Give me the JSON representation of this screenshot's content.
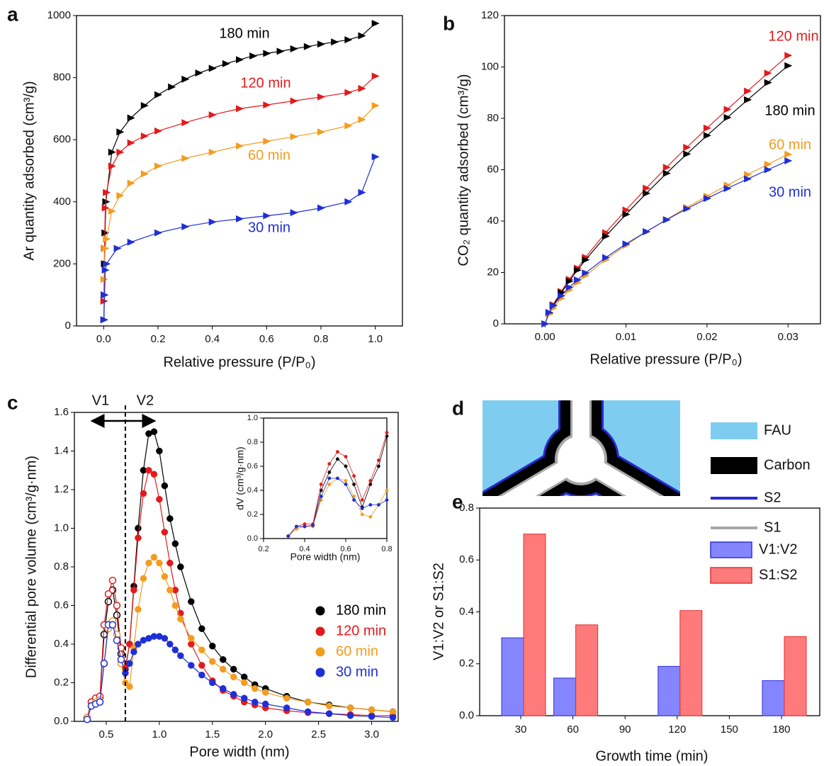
{
  "chart_data": [
    {
      "type": "line",
      "label": "a",
      "marker": "triangle",
      "xlabel": "Relative pressure (P/P₀)",
      "ylabel": "Ar quantity adsorbed (cm³/g)",
      "xlim": [
        -0.1,
        1.1
      ],
      "ylim": [
        0,
        1000
      ],
      "xticks": [
        {
          "value": 0,
          "label": "0.0"
        },
        0.2,
        0.4,
        0.6,
        0.8,
        {
          "value": 1,
          "label": "1.0"
        }
      ],
      "yticks": [
        0,
        200,
        400,
        600,
        800,
        1000
      ],
      "series": [
        {
          "name": "180 min",
          "color": "#000000",
          "x": [
            0.001,
            0.002,
            0.003,
            0.005,
            0.008,
            0.03,
            0.06,
            0.1,
            0.15,
            0.2,
            0.25,
            0.3,
            0.35,
            0.4,
            0.45,
            0.5,
            0.55,
            0.6,
            0.65,
            0.7,
            0.75,
            0.8,
            0.85,
            0.9,
            0.95,
            1.0
          ],
          "values": [
            20,
            100,
            200,
            300,
            400,
            560,
            625,
            670,
            710,
            745,
            770,
            795,
            815,
            830,
            845,
            858,
            870,
            878,
            885,
            893,
            900,
            908,
            915,
            922,
            935,
            975
          ]
        },
        {
          "name": "120 min",
          "color": "#e31a1c",
          "x": [
            0.001,
            0.003,
            0.006,
            0.01,
            0.03,
            0.06,
            0.1,
            0.15,
            0.2,
            0.3,
            0.4,
            0.5,
            0.6,
            0.7,
            0.8,
            0.9,
            0.95,
            1.0
          ],
          "values": [
            80,
            250,
            380,
            430,
            515,
            560,
            590,
            612,
            628,
            655,
            680,
            700,
            712,
            725,
            738,
            752,
            765,
            805
          ]
        },
        {
          "name": "60 min",
          "color": "#f39c1f",
          "x": [
            0.001,
            0.005,
            0.01,
            0.03,
            0.06,
            0.1,
            0.15,
            0.2,
            0.3,
            0.4,
            0.5,
            0.6,
            0.7,
            0.8,
            0.9,
            0.95,
            1.0
          ],
          "values": [
            150,
            250,
            280,
            370,
            420,
            460,
            490,
            515,
            540,
            560,
            580,
            595,
            610,
            625,
            645,
            665,
            710
          ]
        },
        {
          "name": "30 min",
          "color": "#1f2fd6",
          "x": [
            0.001,
            0.003,
            0.006,
            0.01,
            0.05,
            0.1,
            0.2,
            0.3,
            0.4,
            0.5,
            0.6,
            0.7,
            0.8,
            0.9,
            0.95,
            1.0
          ],
          "values": [
            20,
            100,
            180,
            200,
            250,
            270,
            300,
            320,
            335,
            345,
            355,
            365,
            380,
            400,
            430,
            545
          ]
        }
      ]
    },
    {
      "type": "line",
      "label": "b",
      "marker": "triangle",
      "xlabel": "Relative pressure (P/P₀)",
      "ylabel": "CO₂ quantity adsorbed (cm³/g)",
      "xlim": [
        -0.005,
        0.034
      ],
      "ylim": [
        0,
        120
      ],
      "xticks": [
        {
          "value": 0,
          "label": "0.00"
        },
        0.01,
        0.02,
        0.03
      ],
      "yticks": [
        0,
        20,
        40,
        60,
        80,
        100,
        120
      ],
      "x": [
        0,
        0.0005,
        0.001,
        0.002,
        0.003,
        0.004,
        0.005,
        0.0075,
        0.01,
        0.0125,
        0.015,
        0.0175,
        0.02,
        0.0225,
        0.025,
        0.0275,
        0.03
      ],
      "series": [
        {
          "name": "120 min",
          "color": "#e31a1c",
          "values": [
            0,
            4.3,
            7.4,
            12.6,
            17.3,
            21.7,
            25.9,
            35.5,
            44.3,
            52.8,
            60.9,
            68.7,
            76.2,
            83.5,
            90.6,
            97.6,
            104.5
          ]
        },
        {
          "name": "180 min",
          "color": "#000000",
          "values": [
            0,
            4.1,
            7.1,
            12.1,
            16.6,
            20.9,
            24.9,
            34.1,
            42.6,
            50.8,
            58.6,
            66.1,
            73.3,
            80.3,
            87.2,
            93.9,
            100.5
          ]
        },
        {
          "name": "60 min",
          "color": "#f39c1f",
          "values": [
            0,
            3.8,
            6.1,
            9.9,
            13.2,
            16.1,
            18.8,
            25.0,
            30.6,
            35.8,
            40.6,
            45.3,
            49.7,
            54.0,
            58.1,
            62.1,
            66
          ]
        },
        {
          "name": "30 min",
          "color": "#1f2fd6",
          "values": [
            0,
            4.4,
            7.0,
            10.9,
            14.2,
            17.1,
            19.8,
            25.8,
            31.1,
            35.9,
            40.5,
            44.8,
            48.8,
            52.7,
            56.4,
            60.0,
            63.5
          ]
        }
      ]
    },
    {
      "type": "line",
      "label": "c",
      "marker": "circle",
      "legend": "right",
      "xlabel": "Pore width (nm)",
      "ylabel": "Differential pore volume (cm³/g·nm)",
      "annotations": [
        "V1",
        "V2"
      ],
      "vline": 0.68,
      "xlim": [
        0.2,
        3.25
      ],
      "ylim": [
        0,
        1.6
      ],
      "xticks": [
        0.5,
        {
          "value": 1,
          "label": "1.0"
        },
        1.5,
        {
          "value": 2,
          "label": "2.0"
        },
        2.5,
        {
          "value": 3,
          "label": "3.0"
        }
      ],
      "yticks": [
        {
          "value": 0,
          "label": "0.0"
        },
        0.2,
        0.4,
        0.6,
        0.8,
        {
          "value": 1,
          "label": "1.0"
        },
        1.2,
        1.4,
        1.6
      ],
      "x": [
        0.32,
        0.36,
        0.4,
        0.44,
        0.48,
        0.52,
        0.56,
        0.6,
        0.64,
        0.68,
        0.72,
        0.76,
        0.8,
        0.85,
        0.9,
        0.95,
        1.0,
        1.05,
        1.1,
        1.15,
        1.2,
        1.3,
        1.4,
        1.5,
        1.6,
        1.7,
        1.8,
        1.9,
        2.0,
        2.2,
        2.4,
        2.6,
        2.8,
        3.0,
        3.2
      ],
      "series": [
        {
          "name": "180 min",
          "color": "#000000",
          "values": [
            0.02,
            0.1,
            0.11,
            0.12,
            0.45,
            0.62,
            0.68,
            0.55,
            0.35,
            0.27,
            0.4,
            0.7,
            1.0,
            1.3,
            1.49,
            1.5,
            1.4,
            1.22,
            1.05,
            0.92,
            0.8,
            0.62,
            0.48,
            0.39,
            0.32,
            0.27,
            0.23,
            0.19,
            0.17,
            0.13,
            0.1,
            0.085,
            0.07,
            0.06,
            0.05
          ]
        },
        {
          "name": "120 min",
          "color": "#e31a1c",
          "values": [
            0.02,
            0.1,
            0.12,
            0.13,
            0.5,
            0.66,
            0.73,
            0.6,
            0.38,
            0.28,
            0.4,
            0.68,
            0.95,
            1.18,
            1.3,
            1.28,
            1.15,
            0.98,
            0.82,
            0.68,
            0.56,
            0.4,
            0.29,
            0.21,
            0.16,
            0.13,
            0.1,
            0.085,
            0.07,
            0.055,
            0.045,
            0.04,
            0.035,
            0.03,
            0.03
          ]
        },
        {
          "name": "60 min",
          "color": "#f39c1f",
          "values": [
            0.02,
            0.08,
            0.1,
            0.11,
            0.3,
            0.48,
            0.52,
            0.45,
            0.3,
            0.2,
            0.18,
            0.38,
            0.58,
            0.74,
            0.82,
            0.85,
            0.82,
            0.75,
            0.68,
            0.6,
            0.53,
            0.43,
            0.37,
            0.31,
            0.27,
            0.23,
            0.2,
            0.17,
            0.15,
            0.12,
            0.1,
            0.08,
            0.07,
            0.06,
            0.05
          ]
        },
        {
          "name": "30 min",
          "color": "#1f2fd6",
          "values": [
            0.01,
            0.08,
            0.09,
            0.1,
            0.3,
            0.5,
            0.5,
            0.42,
            0.32,
            0.25,
            0.3,
            0.36,
            0.4,
            0.42,
            0.43,
            0.44,
            0.44,
            0.43,
            0.4,
            0.37,
            0.34,
            0.29,
            0.24,
            0.2,
            0.17,
            0.14,
            0.12,
            0.1,
            0.09,
            0.07,
            0.05,
            0.04,
            0.03,
            0.025,
            0.02
          ]
        }
      ]
    },
    {
      "type": "line",
      "marker": "circle",
      "xlabel": "Pore width (nm)",
      "ylabel": "dV (cm³/g·nm)",
      "xlim": [
        0.2,
        0.8
      ],
      "ylim": [
        0,
        1
      ],
      "xticks": [
        0.2,
        0.4,
        0.6,
        0.8
      ],
      "yticks": [
        {
          "value": 0,
          "label": "0.0"
        },
        0.2,
        0.4,
        0.6,
        0.8,
        {
          "value": 1,
          "label": "1.0"
        }
      ],
      "x": [
        0.32,
        0.36,
        0.4,
        0.44,
        0.48,
        0.52,
        0.56,
        0.6,
        0.64,
        0.68,
        0.72,
        0.76,
        0.8
      ],
      "series": [
        {
          "color": "#000000",
          "values": [
            0.02,
            0.1,
            0.1,
            0.11,
            0.4,
            0.55,
            0.66,
            0.6,
            0.45,
            0.26,
            0.45,
            0.6,
            0.85
          ]
        },
        {
          "color": "#e31a1c",
          "values": [
            0.02,
            0.1,
            0.12,
            0.12,
            0.45,
            0.62,
            0.72,
            0.68,
            0.52,
            0.32,
            0.48,
            0.65,
            0.88
          ]
        },
        {
          "color": "#f39c1f",
          "values": [
            0.02,
            0.08,
            0.1,
            0.1,
            0.32,
            0.45,
            0.5,
            0.48,
            0.35,
            0.2,
            0.18,
            0.28,
            0.4
          ]
        },
        {
          "color": "#1f2fd6",
          "values": [
            0.02,
            0.1,
            0.1,
            0.11,
            0.35,
            0.5,
            0.5,
            0.45,
            0.32,
            0.25,
            0.28,
            0.28,
            0.32
          ]
        }
      ]
    },
    {
      "type": "bar",
      "label": "e",
      "legend": "upper right",
      "xlabel": "Growth time (min)",
      "ylabel": "V1:V2 or S1:S2",
      "categories": [
        "30",
        "60",
        "90",
        "120",
        "150",
        "180"
      ],
      "ylim": [
        0,
        0.8
      ],
      "yticks": [
        {
          "value": 0,
          "label": "0.0"
        },
        0.2,
        0.4,
        0.6,
        0.8
      ],
      "series": [
        {
          "name": "V1:V2",
          "color": "#8585ff",
          "values": [
            0.3,
            0.145,
            null,
            0.19,
            null,
            0.135
          ]
        },
        {
          "name": "S1:S2",
          "color": "#ff7a7a",
          "values": [
            0.7,
            0.35,
            null,
            0.405,
            null,
            0.305
          ]
        }
      ]
    }
  ],
  "diagram": {
    "label": "d",
    "legend": [
      "FAU",
      "Carbon",
      "S2",
      "S1"
    ]
  }
}
